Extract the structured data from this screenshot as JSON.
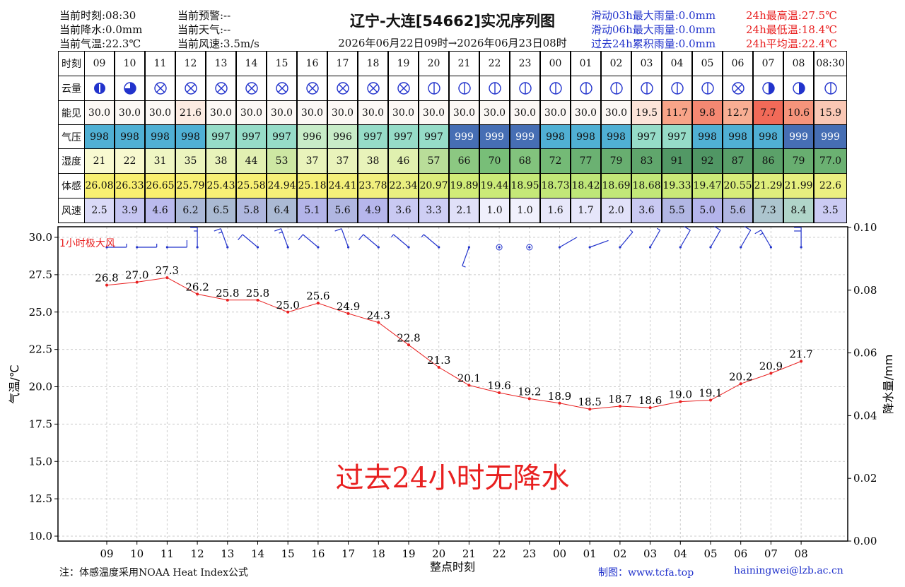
{
  "header": {
    "left": [
      "当前时刻:08:30",
      "当前降水:0.0mm",
      "当前气温:22.3℃"
    ],
    "mid": [
      "当前预警:--",
      "当前天气:--",
      "当前风速:3.5m/s"
    ],
    "title": "辽宁-大连[54662]实况序列图",
    "subtitle": "2026年06月22日09时→2026年06月23日08时",
    "rain": [
      "滑动03h最大雨量:0.0mm",
      "滑动06h最大雨量:0.0mm",
      "过去24h累积雨量:0.0mm"
    ],
    "temp": [
      "24h最高温:27.5℃",
      "24h最低温:18.4℃",
      "24h平均温:22.4℃"
    ]
  },
  "colors": {
    "temp_line": "#e82020",
    "wind_barb": "#2233cc",
    "grid": "#cccccc"
  },
  "table": {
    "row_labels": [
      "时刻",
      "云量",
      "能见",
      "气压",
      "湿度",
      "体感",
      "风速"
    ],
    "hours": [
      "09",
      "10",
      "11",
      "12",
      "13",
      "14",
      "15",
      "16",
      "17",
      "18",
      "19",
      "20",
      "21",
      "22",
      "23",
      "00",
      "01",
      "02",
      "03",
      "04",
      "05",
      "06",
      "07",
      "08",
      "08:30"
    ],
    "cloud": [
      "overcast-icon",
      "three-quarter-icon",
      "obscured-icon",
      "obscured-icon",
      "obscured-icon",
      "obscured-icon",
      "obscured-icon",
      "obscured-icon",
      "obscured-icon",
      "obscured-icon",
      "obscured-icon",
      "clear-icon",
      "clear-icon",
      "clear-icon",
      "clear-icon",
      "clear-icon",
      "clear-icon",
      "clear-icon",
      "clear-icon",
      "clear-icon",
      "clear-icon",
      "obscured-icon",
      "half-icon",
      "half-icon",
      "clear-icon"
    ],
    "visibility": [
      "30.0",
      "30.0",
      "30.0",
      "21.6",
      "30.0",
      "30.0",
      "30.0",
      "30.0",
      "30.0",
      "30.0",
      "30.0",
      "30.0",
      "30.0",
      "30.0",
      "30.0",
      "30.0",
      "30.0",
      "30.0",
      "19.5",
      "11.7",
      "9.8",
      "12.7",
      "7.7",
      "10.6",
      "15.9"
    ],
    "pressure": [
      "998",
      "998",
      "998",
      "998",
      "997",
      "997",
      "997",
      "996",
      "996",
      "997",
      "997",
      "997",
      "999",
      "999",
      "999",
      "998",
      "998",
      "998",
      "997",
      "997",
      "998",
      "998",
      "998",
      "999",
      "999"
    ],
    "humidity": [
      "21",
      "22",
      "31",
      "35",
      "38",
      "44",
      "53",
      "37",
      "37",
      "38",
      "46",
      "57",
      "66",
      "70",
      "68",
      "72",
      "77",
      "79",
      "83",
      "91",
      "92",
      "87",
      "86",
      "79",
      "77.0"
    ],
    "feels": [
      "26.08",
      "26.33",
      "26.65",
      "25.79",
      "25.43",
      "25.58",
      "24.94",
      "25.18",
      "24.41",
      "23.78",
      "22.34",
      "20.97",
      "19.89",
      "19.44",
      "18.95",
      "18.73",
      "18.42",
      "18.69",
      "18.68",
      "19.33",
      "19.47",
      "20.55",
      "21.29",
      "21.99",
      "22.6"
    ],
    "wind_speed": [
      "2.5",
      "3.9",
      "4.6",
      "6.2",
      "6.5",
      "5.8",
      "6.4",
      "5.1",
      "5.6",
      "4.9",
      "3.6",
      "3.3",
      "2.1",
      "1.0",
      "1.0",
      "1.6",
      "1.7",
      "2.0",
      "3.6",
      "5.5",
      "5.0",
      "5.6",
      "7.3",
      "8.4",
      "3.5"
    ]
  },
  "chart_data": {
    "type": "line",
    "x": [
      "09",
      "10",
      "11",
      "12",
      "13",
      "14",
      "15",
      "16",
      "17",
      "18",
      "19",
      "20",
      "21",
      "22",
      "23",
      "00",
      "01",
      "02",
      "03",
      "04",
      "05",
      "06",
      "07",
      "08"
    ],
    "series": [
      {
        "values": [
          26.8,
          27.0,
          27.3,
          26.2,
          25.8,
          25.8,
          25.0,
          25.6,
          24.9,
          24.3,
          22.8,
          21.3,
          20.1,
          19.6,
          19.2,
          18.9,
          18.5,
          18.7,
          18.6,
          19.0,
          19.1,
          20.2,
          20.9,
          21.7
        ]
      }
    ],
    "wind_dir_deg": [
      90,
      90,
      90,
      180,
      200,
      230,
      200,
      230,
      200,
      230,
      230,
      230,
      340,
      0,
      0,
      120,
      110,
      140,
      150,
      150,
      150,
      150,
      210,
      180
    ],
    "ylabel": "气温/℃",
    "y2label": "降水量/mm",
    "xlabel": "整点时刻",
    "ylim": [
      10,
      30
    ],
    "y_ticks": [
      "10.0",
      "12.5",
      "15.0",
      "17.5",
      "20.0",
      "22.5",
      "25.0",
      "27.5",
      "30.0"
    ],
    "y2lim": [
      0,
      0.1
    ],
    "y2_ticks": [
      "0.00",
      "0.02",
      "0.04",
      "0.06",
      "0.08",
      "0.10"
    ],
    "grid": true,
    "annotation": "过去24小时无降水",
    "gust_label": "1小时极大风"
  },
  "footer": {
    "note": "注：体感温度采用NOAA Heat Index公式",
    "credit": "制图：www.tcfa.top",
    "email": "hainingwei@lzb.ac.cn"
  }
}
